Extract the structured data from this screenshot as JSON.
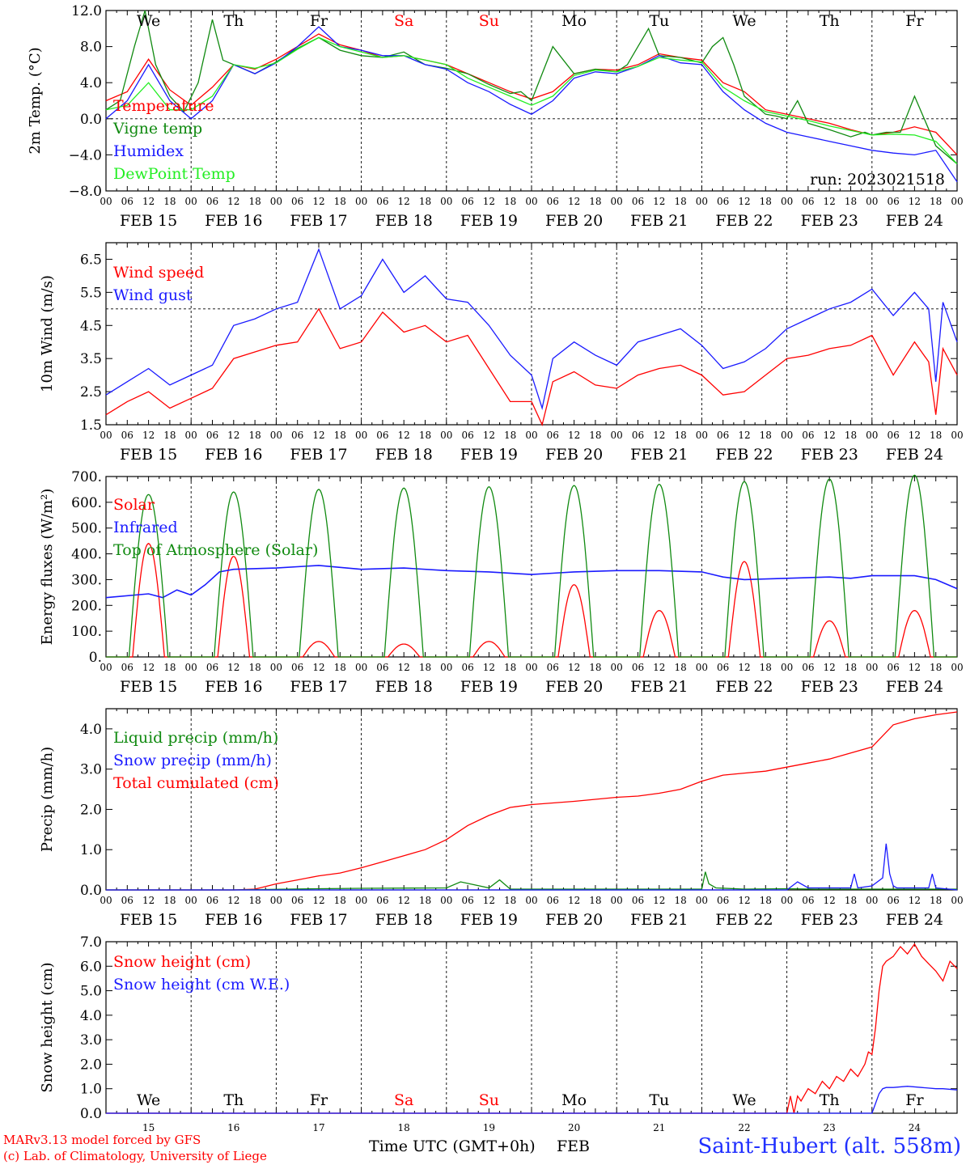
{
  "run_label": "run: 2023021518",
  "footer": {
    "model": "MARv3.13 model forced by GFS",
    "credit": "(c) Lab. of Climatology, University of Liege",
    "xlabel": "Time UTC (GMT+0h)",
    "month": "FEB",
    "station": "Saint-Hubert (alt. 558m)"
  },
  "colors": {
    "red": "#ff0000",
    "green": "#108a10",
    "blue": "#1a1aff",
    "lightgreen": "#22ee22",
    "weekend": "#ff0000"
  },
  "days": {
    "weekday": [
      "We",
      "Th",
      "Fr",
      "Sa",
      "Su",
      "Mo",
      "Tu",
      "We",
      "Th",
      "Fr"
    ],
    "weekend_index": [
      3,
      4
    ],
    "dates": [
      "FEB 15",
      "FEB 16",
      "FEB 17",
      "FEB 18",
      "FEB 19",
      "FEB 20",
      "FEB 21",
      "FEB 22",
      "FEB 23",
      "FEB 24"
    ],
    "day_numbers": [
      "15",
      "16",
      "17",
      "18",
      "19",
      "20",
      "21",
      "22",
      "23",
      "24"
    ],
    "hour_ticks": [
      "00",
      "06",
      "12",
      "18"
    ],
    "last_tick": "00"
  },
  "chart_data": [
    {
      "type": "line",
      "ylabel": "2m Temp. (°C)",
      "ylim": [
        -8,
        12
      ],
      "yticks": [
        "12.0",
        "8.0",
        "4.0",
        "0.0",
        "−4.0",
        "−8.0"
      ],
      "ytick_values": [
        12,
        8,
        4,
        0,
        -4,
        -8
      ],
      "ref_line": 0,
      "legend": [
        "Temperature",
        "Vigne temp",
        "Humidex",
        "DewPoint Temp"
      ],
      "series": [
        {
          "name": "Temperature",
          "color": "red",
          "x": [
            0,
            6,
            12,
            18,
            24,
            30,
            36,
            42,
            48,
            54,
            60,
            66,
            72,
            78,
            84,
            90,
            96,
            102,
            108,
            114,
            120,
            126,
            132,
            138,
            144,
            150,
            156,
            162,
            168,
            174,
            180,
            186,
            192,
            198,
            204,
            210,
            216,
            222,
            228,
            234,
            240
          ],
          "values": [
            2.0,
            3.0,
            6.6,
            3.2,
            1.5,
            3.5,
            6.0,
            5.5,
            6.6,
            8.0,
            9.4,
            8.2,
            7.6,
            6.8,
            7.0,
            6.5,
            6.0,
            5.0,
            4.0,
            3.0,
            2.2,
            3.0,
            5.0,
            5.5,
            5.4,
            6.0,
            7.2,
            6.8,
            6.5,
            4.0,
            3.0,
            1.0,
            0.5,
            0.0,
            -0.5,
            -1.2,
            -1.8,
            -1.5,
            -0.9,
            -1.5,
            -4.0
          ]
        },
        {
          "name": "Vigne temp",
          "color": "green",
          "x": [
            0,
            4,
            8,
            11,
            14,
            18,
            22,
            26,
            30,
            33,
            36,
            42,
            48,
            54,
            60,
            66,
            72,
            78,
            84,
            90,
            96,
            102,
            108,
            114,
            117,
            120,
            123,
            126,
            132,
            138,
            144,
            147,
            150,
            153,
            156,
            162,
            168,
            171,
            174,
            177,
            180,
            186,
            189,
            192,
            195,
            198,
            204,
            210,
            214,
            216,
            220,
            224,
            228,
            234,
            240
          ],
          "values": [
            1.0,
            2.0,
            8.0,
            12.0,
            6.0,
            2.5,
            0.8,
            4.0,
            11.0,
            6.5,
            6.0,
            5.0,
            6.3,
            7.8,
            9.0,
            7.6,
            7.0,
            6.8,
            7.4,
            6.0,
            5.6,
            5.0,
            3.8,
            2.8,
            3.0,
            2.0,
            5.0,
            8.0,
            5.0,
            5.5,
            5.2,
            6.0,
            8.0,
            10.0,
            7.0,
            6.8,
            6.2,
            8.0,
            9.0,
            6.0,
            2.5,
            0.5,
            0.3,
            0.0,
            2.0,
            -0.5,
            -1.2,
            -2.0,
            -1.5,
            -1.8,
            -1.5,
            -1.5,
            2.5,
            -3.0,
            -5.0
          ]
        },
        {
          "name": "Humidex",
          "color": "blue",
          "x": [
            0,
            6,
            12,
            18,
            24,
            30,
            36,
            42,
            48,
            54,
            60,
            66,
            72,
            78,
            84,
            90,
            96,
            102,
            108,
            114,
            120,
            126,
            132,
            138,
            144,
            150,
            156,
            162,
            168,
            174,
            180,
            186,
            192,
            198,
            204,
            210,
            216,
            222,
            228,
            234,
            240
          ],
          "values": [
            0.0,
            2.0,
            6.0,
            2.0,
            0.0,
            2.0,
            6.0,
            5.0,
            6.2,
            8.0,
            10.2,
            8.0,
            7.6,
            7.0,
            7.0,
            6.0,
            5.5,
            4.0,
            3.0,
            1.6,
            0.5,
            2.0,
            4.5,
            5.2,
            5.0,
            5.8,
            7.0,
            6.2,
            6.0,
            3.0,
            1.0,
            -0.5,
            -1.5,
            -2.0,
            -2.5,
            -3.0,
            -3.5,
            -3.8,
            -4.0,
            -3.5,
            -7.0
          ]
        },
        {
          "name": "DewPoint Temp",
          "color": "lightgreen",
          "x": [
            0,
            6,
            12,
            18,
            24,
            30,
            36,
            42,
            48,
            54,
            60,
            66,
            72,
            78,
            84,
            90,
            96,
            102,
            108,
            114,
            120,
            126,
            132,
            138,
            144,
            150,
            156,
            162,
            168,
            174,
            180,
            186,
            192,
            198,
            204,
            210,
            216,
            222,
            228,
            234,
            240
          ],
          "values": [
            1.0,
            1.5,
            4.0,
            1.0,
            1.0,
            2.5,
            6.0,
            5.6,
            6.2,
            7.7,
            9.0,
            8.0,
            7.4,
            6.8,
            7.0,
            6.5,
            6.0,
            4.5,
            3.5,
            2.5,
            1.5,
            2.5,
            4.8,
            5.4,
            5.2,
            5.8,
            6.8,
            6.5,
            6.3,
            3.5,
            2.0,
            0.8,
            0.3,
            -0.2,
            -0.8,
            -1.3,
            -1.8,
            -1.7,
            -1.8,
            -2.5,
            -5.0
          ]
        }
      ]
    },
    {
      "type": "line",
      "ylabel": "10m Wind (m/s)",
      "ylim": [
        1.5,
        7.0
      ],
      "yticks": [
        "6.5",
        "5.5",
        "4.5",
        "3.5",
        "2.5",
        "1.5"
      ],
      "ytick_values": [
        6.5,
        5.5,
        4.5,
        3.5,
        2.5,
        1.5
      ],
      "ref_line": 5.0,
      "legend": [
        "Wind speed",
        "Wind gust"
      ],
      "series": [
        {
          "name": "Wind speed",
          "color": "red",
          "x": [
            0,
            6,
            12,
            18,
            24,
            30,
            36,
            42,
            48,
            54,
            60,
            66,
            72,
            78,
            84,
            90,
            96,
            102,
            108,
            114,
            120,
            123,
            126,
            132,
            138,
            144,
            150,
            156,
            162,
            168,
            174,
            180,
            186,
            192,
            198,
            204,
            210,
            216,
            222,
            228,
            232,
            234,
            236,
            240
          ],
          "values": [
            1.8,
            2.2,
            2.5,
            2.0,
            2.3,
            2.6,
            3.5,
            3.7,
            3.9,
            4.0,
            5.0,
            3.8,
            4.0,
            4.9,
            4.3,
            4.5,
            4.0,
            4.2,
            3.2,
            2.2,
            2.2,
            1.5,
            2.8,
            3.1,
            2.7,
            2.6,
            3.0,
            3.2,
            3.3,
            3.0,
            2.4,
            2.5,
            3.0,
            3.5,
            3.6,
            3.8,
            3.9,
            4.2,
            3.0,
            4.0,
            3.4,
            1.8,
            3.8,
            3.0
          ]
        },
        {
          "name": "Wind gust",
          "color": "blue",
          "x": [
            0,
            6,
            12,
            18,
            24,
            30,
            36,
            42,
            48,
            54,
            60,
            66,
            72,
            78,
            84,
            90,
            96,
            102,
            108,
            114,
            120,
            123,
            126,
            132,
            138,
            144,
            150,
            156,
            162,
            168,
            174,
            180,
            186,
            192,
            198,
            204,
            210,
            216,
            222,
            228,
            232,
            234,
            236,
            240
          ],
          "values": [
            2.4,
            2.8,
            3.2,
            2.7,
            3.0,
            3.3,
            4.5,
            4.7,
            5.0,
            5.2,
            6.8,
            5.0,
            5.4,
            6.5,
            5.5,
            6.0,
            5.3,
            5.2,
            4.5,
            3.6,
            3.0,
            2.0,
            3.5,
            4.0,
            3.6,
            3.3,
            4.0,
            4.2,
            4.4,
            3.9,
            3.2,
            3.4,
            3.8,
            4.4,
            4.7,
            5.0,
            5.2,
            5.6,
            4.8,
            5.5,
            5.0,
            2.8,
            5.2,
            4.0
          ]
        }
      ]
    },
    {
      "type": "line",
      "ylabel": "Energy fluxes (W/m²)",
      "ylim": [
        0,
        700
      ],
      "yticks": [
        "700.",
        "600.",
        "500.",
        "400.",
        "300.",
        "200.",
        "100.",
        "0."
      ],
      "ytick_values": [
        700,
        600,
        500,
        400,
        300,
        200,
        100,
        0
      ],
      "legend": [
        "Solar",
        "Infrared",
        "Top of Atmosphere (Solar)"
      ],
      "series": [
        {
          "name": "Solar",
          "color": "red",
          "daily_peaks": [
            440,
            390,
            60,
            50,
            60,
            280,
            180,
            370,
            140,
            180
          ]
        },
        {
          "name": "Infrared",
          "color": "blue",
          "x": [
            0,
            12,
            16,
            20,
            24,
            28,
            32,
            36,
            48,
            60,
            72,
            84,
            96,
            108,
            120,
            126,
            132,
            144,
            156,
            168,
            174,
            180,
            192,
            204,
            210,
            216,
            228,
            234,
            240
          ],
          "values": [
            230,
            245,
            230,
            260,
            240,
            280,
            330,
            340,
            345,
            355,
            340,
            345,
            335,
            330,
            320,
            325,
            330,
            335,
            335,
            330,
            310,
            300,
            305,
            310,
            305,
            315,
            315,
            300,
            265
          ]
        },
        {
          "name": "Top of Atmosphere (Solar)",
          "color": "green",
          "daily_peaks": [
            630,
            640,
            650,
            655,
            660,
            665,
            670,
            680,
            690,
            705
          ]
        }
      ]
    },
    {
      "type": "line",
      "ylabel": "Precip (mm/h)",
      "ylim": [
        0,
        4.5
      ],
      "yticks": [
        "4.0",
        "3.0",
        "2.0",
        "1.0",
        "0.0"
      ],
      "ytick_values": [
        4.0,
        3.0,
        2.0,
        1.0,
        0.0
      ],
      "legend": [
        "Liquid precip (mm/h)",
        "Snow precip (mm/h)",
        "Total cumulated (cm)"
      ],
      "series": [
        {
          "name": "Total cumulated (cm)",
          "color": "red",
          "x": [
            0,
            36,
            42,
            48,
            54,
            60,
            66,
            72,
            78,
            84,
            90,
            96,
            102,
            108,
            114,
            120,
            132,
            144,
            150,
            156,
            162,
            168,
            174,
            180,
            186,
            192,
            198,
            204,
            210,
            216,
            222,
            228,
            234,
            240
          ],
          "values": [
            0,
            0,
            0.02,
            0.15,
            0.25,
            0.35,
            0.42,
            0.55,
            0.7,
            0.85,
            1.0,
            1.25,
            1.6,
            1.85,
            2.05,
            2.12,
            2.2,
            2.3,
            2.33,
            2.4,
            2.5,
            2.7,
            2.85,
            2.9,
            2.95,
            3.05,
            3.15,
            3.25,
            3.4,
            3.55,
            4.1,
            4.25,
            4.35,
            4.42
          ]
        },
        {
          "name": "Liquid precip (mm/h)",
          "color": "green",
          "x": [
            0,
            36,
            60,
            72,
            96,
            100,
            108,
            111,
            114,
            120,
            168,
            169,
            170,
            172,
            180,
            192,
            200,
            240
          ],
          "values": [
            0,
            0,
            0.03,
            0.04,
            0.05,
            0.2,
            0.05,
            0.25,
            0.02,
            0.02,
            0.02,
            0.45,
            0.15,
            0.05,
            0.02,
            0.03,
            0.02,
            0.02
          ]
        },
        {
          "name": "Snow precip (mm/h)",
          "color": "blue",
          "x": [
            0,
            192,
            195,
            198,
            206,
            210,
            211,
            212,
            216,
            219,
            220,
            221,
            222,
            223,
            224,
            228,
            232,
            233,
            234,
            240
          ],
          "values": [
            0,
            0,
            0.2,
            0.05,
            0.05,
            0.05,
            0.4,
            0.05,
            0.1,
            0.3,
            1.15,
            0.4,
            0.1,
            0.05,
            0.05,
            0.05,
            0.05,
            0.4,
            0.05,
            0.0
          ]
        }
      ]
    },
    {
      "type": "line",
      "ylabel": "Snow height (cm)",
      "ylim": [
        0,
        7.0
      ],
      "yticks": [
        "7.0",
        "6.0",
        "5.0",
        "4.0",
        "3.0",
        "2.0",
        "1.0",
        "0.0"
      ],
      "ytick_values": [
        7.0,
        6.0,
        5.0,
        4.0,
        3.0,
        2.0,
        1.0,
        0.0
      ],
      "legend": [
        "Snow height (cm)",
        "Snow height (cm W.E.)"
      ],
      "series": [
        {
          "name": "Snow height (cm)",
          "color": "red",
          "x": [
            0,
            192,
            193,
            194,
            195,
            196,
            198,
            200,
            202,
            204,
            206,
            208,
            210,
            212,
            214,
            215,
            216,
            217,
            218,
            219,
            220,
            222,
            224,
            226,
            228,
            230,
            232,
            234,
            236,
            238,
            240
          ],
          "values": [
            0,
            0,
            0.7,
            0,
            0.7,
            0.5,
            1.0,
            0.8,
            1.3,
            1.0,
            1.5,
            1.3,
            1.8,
            1.5,
            2.0,
            2.5,
            2.4,
            3.5,
            5.0,
            6.0,
            6.2,
            6.4,
            6.8,
            6.5,
            6.9,
            6.4,
            6.1,
            5.8,
            5.4,
            6.2,
            5.9
          ]
        },
        {
          "name": "Snow height (cm W.E.)",
          "color": "blue",
          "x": [
            0,
            216,
            217,
            218,
            219,
            220,
            222,
            226,
            230,
            234,
            236,
            240
          ],
          "values": [
            0,
            0,
            0.4,
            0.8,
            1.0,
            1.05,
            1.05,
            1.1,
            1.05,
            1.0,
            1.0,
            0.95
          ]
        }
      ]
    }
  ]
}
